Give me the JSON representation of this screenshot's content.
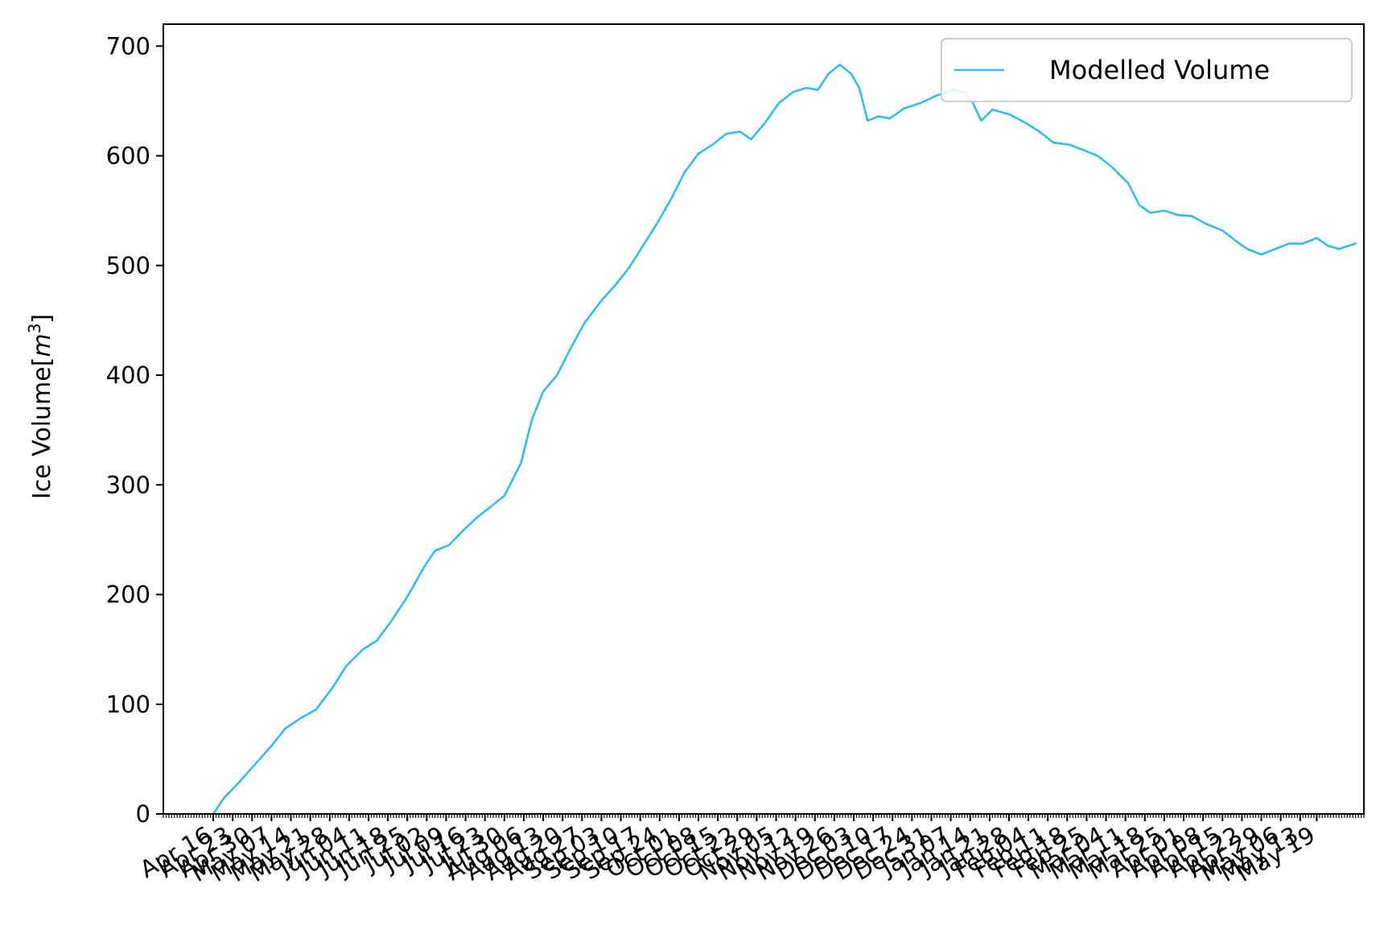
{
  "chart_data": {
    "type": "line",
    "title": "",
    "xlabel": "",
    "ylabel": "Ice Volume[m³]",
    "ylabel_parts": {
      "text": "Ice Volume[",
      "var": "m",
      "sup": "3",
      "close": "]"
    },
    "ylim": [
      0,
      720
    ],
    "yticks": [
      0,
      100,
      200,
      300,
      400,
      500,
      600,
      700
    ],
    "xlim": [
      "2018-03-29",
      "2019-06-05"
    ],
    "grid": false,
    "legend": {
      "position": "top-right",
      "entries": [
        "Modelled Volume"
      ]
    },
    "xtick_labels": [
      {
        "date": "2018-04-16",
        "label": "Apr 16"
      },
      {
        "date": "2018-04-23",
        "label": "Apr 23"
      },
      {
        "date": "2018-04-30",
        "label": "Apr 30"
      },
      {
        "date": "2018-05-07",
        "label": "May 07"
      },
      {
        "date": "2018-05-14",
        "label": "May 14"
      },
      {
        "date": "2018-05-21",
        "label": "May 21"
      },
      {
        "date": "2018-05-28",
        "label": "May 28"
      },
      {
        "date": "2018-06-04",
        "label": "Jun 04"
      },
      {
        "date": "2018-06-11",
        "label": "Jun 11"
      },
      {
        "date": "2018-06-18",
        "label": "Jun 18"
      },
      {
        "date": "2018-06-25",
        "label": "Jun 25"
      },
      {
        "date": "2018-07-02",
        "label": "Jul 02"
      },
      {
        "date": "2018-07-09",
        "label": "Jul 09"
      },
      {
        "date": "2018-07-16",
        "label": "Jul 16"
      },
      {
        "date": "2018-07-23",
        "label": "Jul 23"
      },
      {
        "date": "2018-07-30",
        "label": "Jul 30"
      },
      {
        "date": "2018-08-06",
        "label": "Aug 06"
      },
      {
        "date": "2018-08-13",
        "label": "Aug 13"
      },
      {
        "date": "2018-08-20",
        "label": "Aug 20"
      },
      {
        "date": "2018-08-27",
        "label": "Aug 27"
      },
      {
        "date": "2018-09-03",
        "label": "Sep 03"
      },
      {
        "date": "2018-09-10",
        "label": "Sep 10"
      },
      {
        "date": "2018-09-17",
        "label": "Sep 17"
      },
      {
        "date": "2018-09-24",
        "label": "Sep 24"
      },
      {
        "date": "2018-10-01",
        "label": "Oct 01"
      },
      {
        "date": "2018-10-08",
        "label": "Oct 08"
      },
      {
        "date": "2018-10-15",
        "label": "Oct 15"
      },
      {
        "date": "2018-10-22",
        "label": "Oct 22"
      },
      {
        "date": "2018-10-29",
        "label": "Oct 29"
      },
      {
        "date": "2018-11-05",
        "label": "Nov 05"
      },
      {
        "date": "2018-11-12",
        "label": "Nov 12"
      },
      {
        "date": "2018-11-19",
        "label": "Nov 19"
      },
      {
        "date": "2018-11-26",
        "label": "Nov 26"
      },
      {
        "date": "2018-12-03",
        "label": "Dec 03"
      },
      {
        "date": "2018-12-10",
        "label": "Dec 10"
      },
      {
        "date": "2018-12-17",
        "label": "Dec 17"
      },
      {
        "date": "2018-12-24",
        "label": "Dec 24"
      },
      {
        "date": "2018-12-31",
        "label": "Dec 31"
      },
      {
        "date": "2019-01-07",
        "label": "Jan 07"
      },
      {
        "date": "2019-01-14",
        "label": "Jan 14"
      },
      {
        "date": "2019-01-21",
        "label": "Jan 21"
      },
      {
        "date": "2019-01-28",
        "label": "Jan 28"
      },
      {
        "date": "2019-02-04",
        "label": "Feb 04"
      },
      {
        "date": "2019-02-11",
        "label": "Feb 11"
      },
      {
        "date": "2019-02-18",
        "label": "Feb 18"
      },
      {
        "date": "2019-02-25",
        "label": "Feb 25"
      },
      {
        "date": "2019-03-04",
        "label": "Mar 04"
      },
      {
        "date": "2019-03-11",
        "label": "Mar 11"
      },
      {
        "date": "2019-03-18",
        "label": "Mar 18"
      },
      {
        "date": "2019-03-25",
        "label": "Mar 25"
      },
      {
        "date": "2019-04-01",
        "label": "Apr 01"
      },
      {
        "date": "2019-04-08",
        "label": "Apr 08"
      },
      {
        "date": "2019-04-15",
        "label": "Apr 15"
      },
      {
        "date": "2019-04-22",
        "label": "Apr 22"
      },
      {
        "date": "2019-04-29",
        "label": "Apr 29"
      },
      {
        "date": "2019-05-06",
        "label": "May 06"
      },
      {
        "date": "2019-05-13",
        "label": "May 13"
      },
      {
        "date": "2019-05-19",
        "label": "May 19"
      }
    ],
    "series": [
      {
        "name": "Modelled Volume",
        "color": "#33bbee",
        "points": [
          [
            "2018-04-16",
            0
          ],
          [
            "2018-04-20",
            15
          ],
          [
            "2018-04-25",
            28
          ],
          [
            "2018-05-01",
            45
          ],
          [
            "2018-05-07",
            62
          ],
          [
            "2018-05-12",
            78
          ],
          [
            "2018-05-18",
            88
          ],
          [
            "2018-05-23",
            95
          ],
          [
            "2018-05-29",
            115
          ],
          [
            "2018-06-03",
            135
          ],
          [
            "2018-06-09",
            150
          ],
          [
            "2018-06-14",
            158
          ],
          [
            "2018-06-19",
            175
          ],
          [
            "2018-06-25",
            198
          ],
          [
            "2018-07-01",
            225
          ],
          [
            "2018-07-05",
            240
          ],
          [
            "2018-07-10",
            245
          ],
          [
            "2018-07-15",
            258
          ],
          [
            "2018-07-20",
            270
          ],
          [
            "2018-07-25",
            280
          ],
          [
            "2018-07-30",
            290
          ],
          [
            "2018-08-05",
            320
          ],
          [
            "2018-08-09",
            360
          ],
          [
            "2018-08-13",
            385
          ],
          [
            "2018-08-18",
            400
          ],
          [
            "2018-08-23",
            425
          ],
          [
            "2018-08-28",
            448
          ],
          [
            "2018-09-03",
            468
          ],
          [
            "2018-09-08",
            482
          ],
          [
            "2018-09-13",
            498
          ],
          [
            "2018-09-18",
            518
          ],
          [
            "2018-09-23",
            538
          ],
          [
            "2018-09-28",
            560
          ],
          [
            "2018-10-03",
            585
          ],
          [
            "2018-10-08",
            602
          ],
          [
            "2018-10-13",
            610
          ],
          [
            "2018-10-18",
            620
          ],
          [
            "2018-10-23",
            622
          ],
          [
            "2018-10-27",
            615
          ],
          [
            "2018-11-01",
            630
          ],
          [
            "2018-11-06",
            648
          ],
          [
            "2018-11-11",
            658
          ],
          [
            "2018-11-16",
            662
          ],
          [
            "2018-11-20",
            660
          ],
          [
            "2018-11-24",
            675
          ],
          [
            "2018-11-28",
            683
          ],
          [
            "2018-12-02",
            675
          ],
          [
            "2018-12-05",
            662
          ],
          [
            "2018-12-08",
            632
          ],
          [
            "2018-12-12",
            636
          ],
          [
            "2018-12-16",
            634
          ],
          [
            "2018-12-21",
            643
          ],
          [
            "2018-12-27",
            648
          ],
          [
            "2019-01-02",
            655
          ],
          [
            "2019-01-08",
            660
          ],
          [
            "2019-01-12",
            658
          ],
          [
            "2019-01-15",
            648
          ],
          [
            "2019-01-18",
            632
          ],
          [
            "2019-01-22",
            642
          ],
          [
            "2019-01-28",
            638
          ],
          [
            "2019-02-03",
            630
          ],
          [
            "2019-02-08",
            622
          ],
          [
            "2019-02-13",
            612
          ],
          [
            "2019-02-19",
            610
          ],
          [
            "2019-02-24",
            605
          ],
          [
            "2019-03-01",
            600
          ],
          [
            "2019-03-06",
            590
          ],
          [
            "2019-03-12",
            575
          ],
          [
            "2019-03-16",
            555
          ],
          [
            "2019-03-20",
            548
          ],
          [
            "2019-03-25",
            550
          ],
          [
            "2019-03-30",
            546
          ],
          [
            "2019-04-04",
            545
          ],
          [
            "2019-04-09",
            538
          ],
          [
            "2019-04-15",
            532
          ],
          [
            "2019-04-20",
            522
          ],
          [
            "2019-04-24",
            515
          ],
          [
            "2019-04-29",
            510
          ],
          [
            "2019-05-04",
            515
          ],
          [
            "2019-05-09",
            520
          ],
          [
            "2019-05-14",
            520
          ],
          [
            "2019-05-19",
            525
          ],
          [
            "2019-05-23",
            518
          ],
          [
            "2019-05-27",
            515
          ],
          [
            "2019-06-02",
            520
          ]
        ]
      }
    ]
  }
}
